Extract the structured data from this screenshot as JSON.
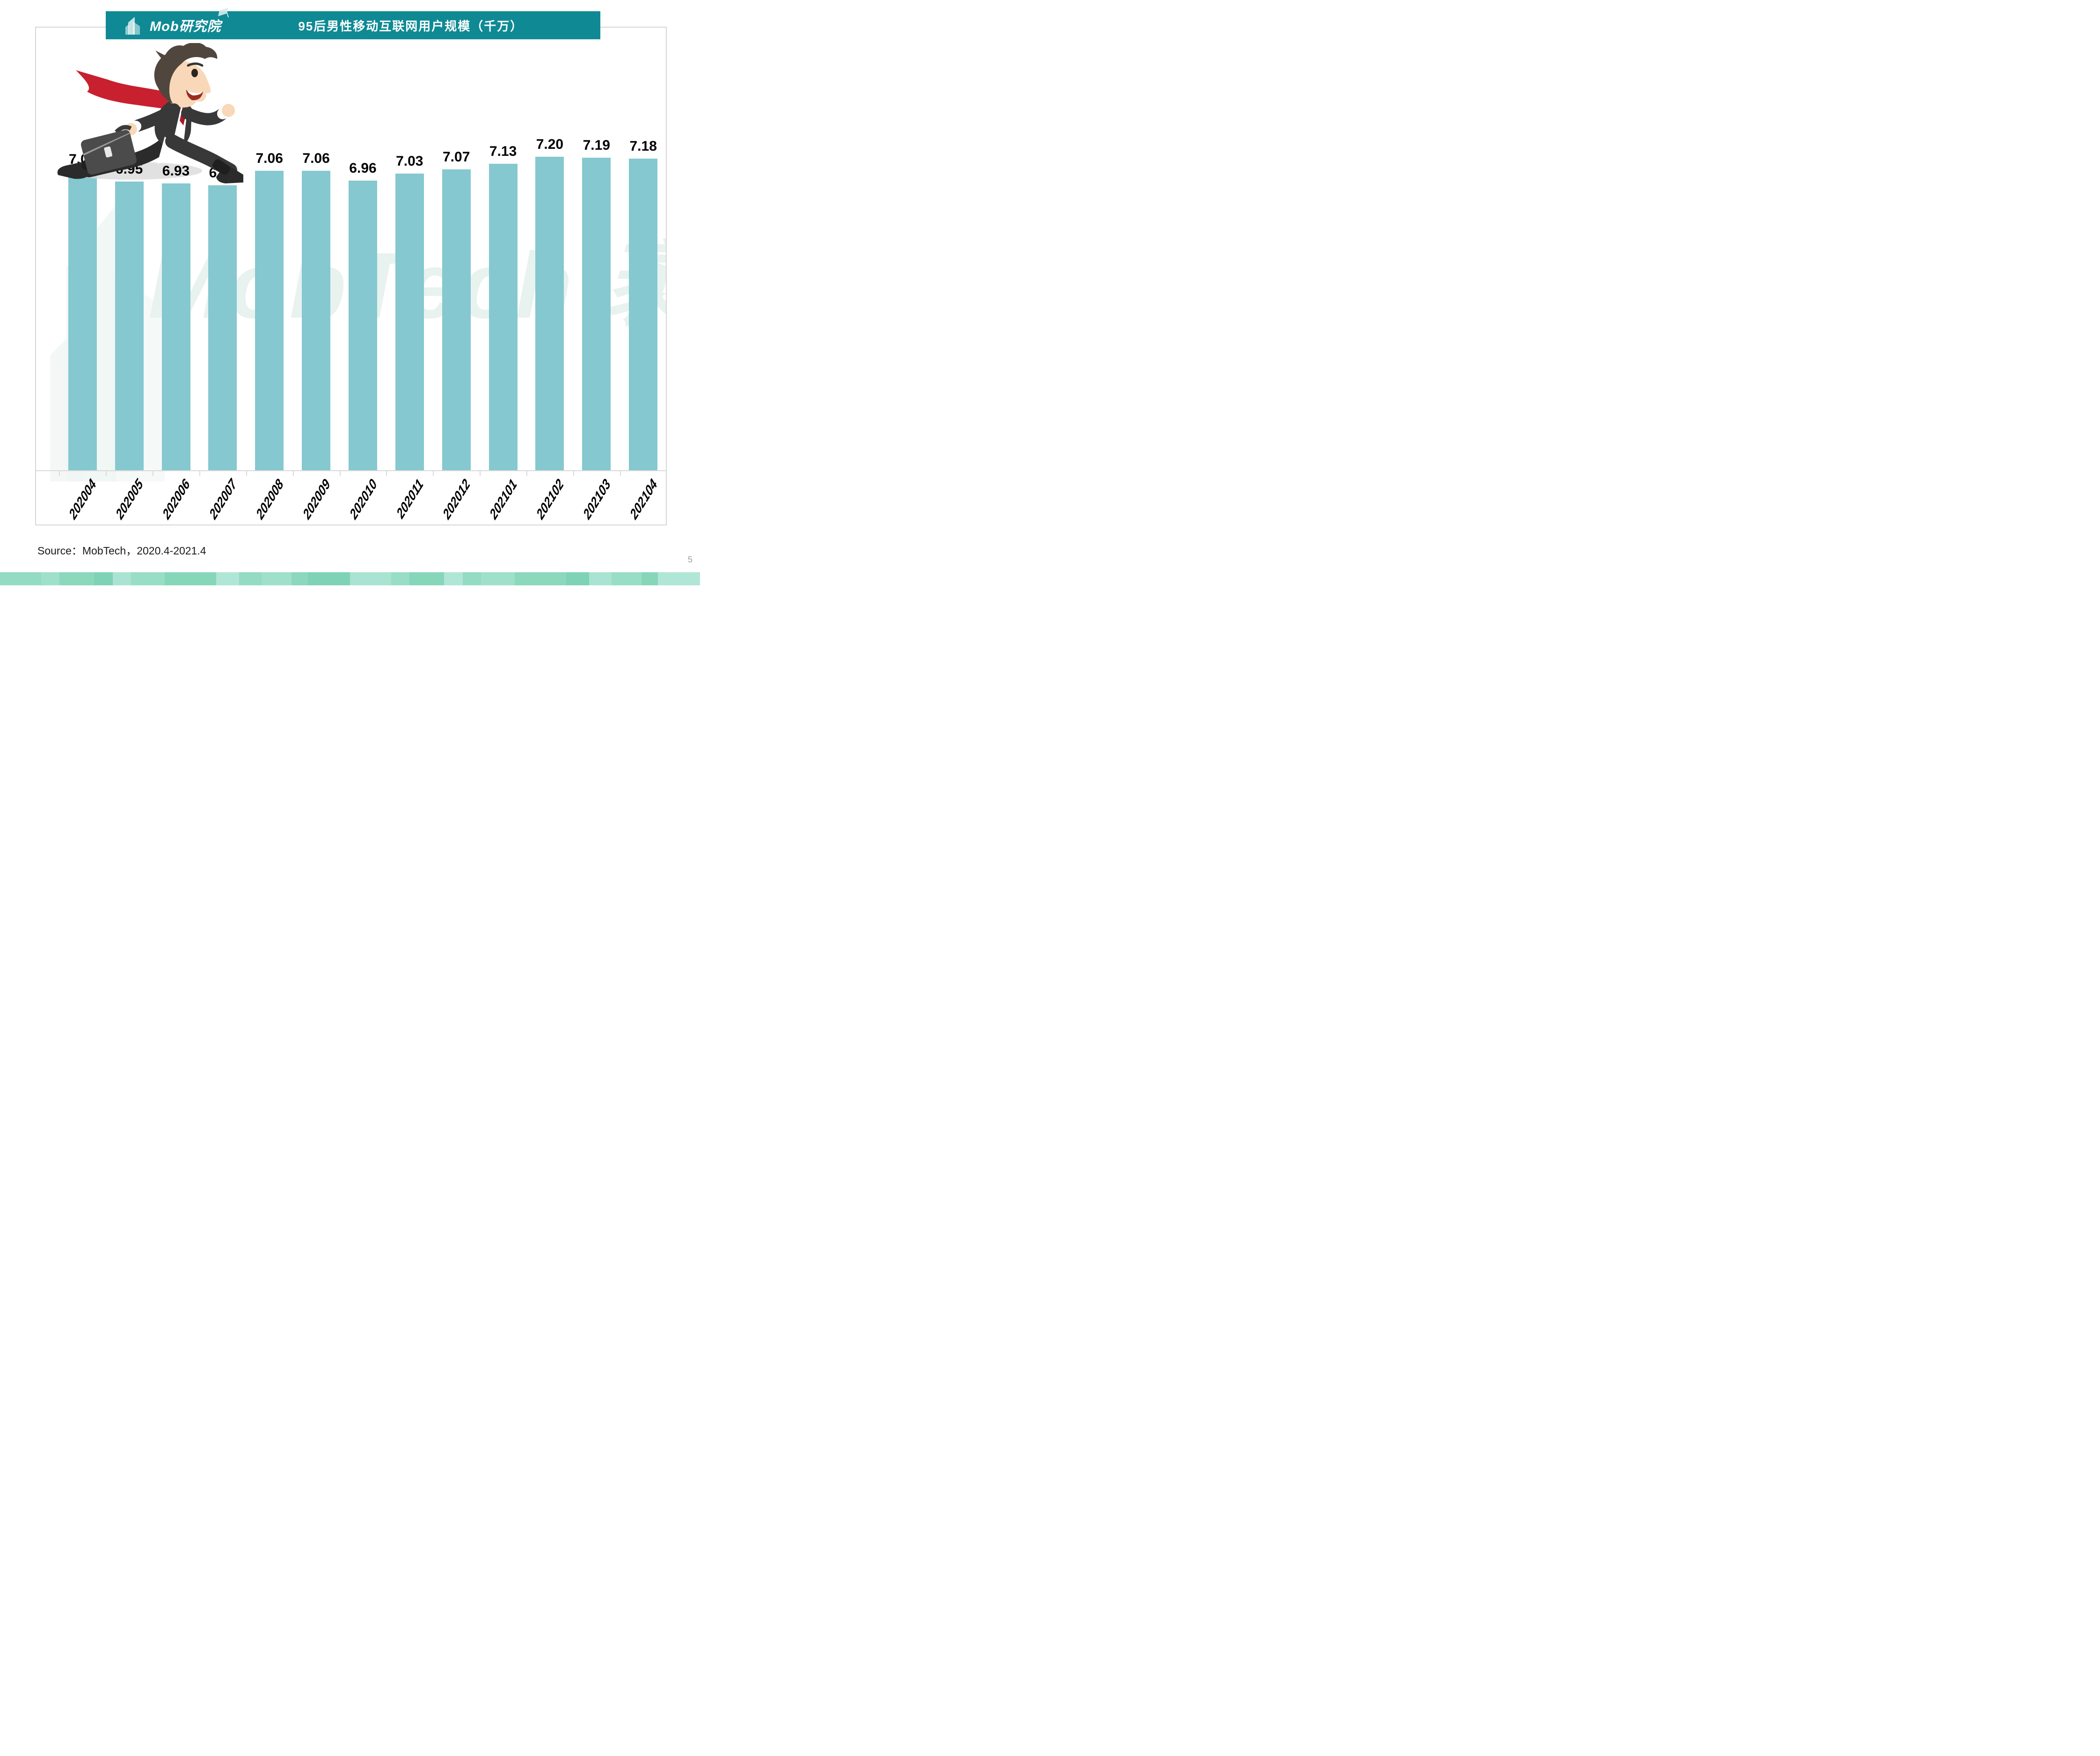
{
  "page": {
    "number": "5",
    "background": "#FFFFFF"
  },
  "banner": {
    "brand": "Mob研究院",
    "brand_icon": "buildings-logo-with-graduation-cap",
    "title": "95后男性移动互联网用户规模（千万）",
    "bg_color": "#0F8A94",
    "text_color": "#FFFFFF"
  },
  "chart_data": {
    "type": "bar",
    "title": "95后男性移动互联网用户规模（千万）",
    "unit": "千万",
    "categories": [
      "202004",
      "202005",
      "202006",
      "202007",
      "202008",
      "202009",
      "202010",
      "202011",
      "202012",
      "202101",
      "202102",
      "202103",
      "202104"
    ],
    "values": [
      7.05,
      6.95,
      6.93,
      6.91,
      7.06,
      7.06,
      6.96,
      7.03,
      7.07,
      7.13,
      7.2,
      7.19,
      7.18
    ],
    "value_labels": [
      "7.05",
      "6.95",
      "6.93",
      "6.91",
      "7.06",
      "7.06",
      "6.96",
      "7.03",
      "7.07",
      "7.13",
      "7.20",
      "7.19",
      "7.18"
    ],
    "bar_color": "#85C8CF",
    "value_label_color": "#000000",
    "x_label_color": "#000000",
    "axis_color": "#D9D9D9",
    "ylim": [
      4.0,
      7.4
    ],
    "grid": false,
    "legend_position": null,
    "x_label_angle_deg": -58
  },
  "watermark": {
    "text": "MobTech 袤博",
    "text_color": "#E8F2EF",
    "building_color": "#EFF6F3"
  },
  "illustration": {
    "name": "running-businessman-with-briefcase",
    "suit_color": "#383838",
    "suit_dark": "#2B2B2B",
    "hair_color": "#51463D",
    "skin_color": "#F8D8B8",
    "cape_color": "#C8202F",
    "cape_dark": "#A8182A",
    "shirt_color": "#FFFFFF",
    "briefcase_color": "#4B4B4B",
    "briefcase_light": "#6E6E6E",
    "shadow_color": "#DADADA"
  },
  "source_note": "Source：MobTech，2020.4-2021.4",
  "footer_band": {
    "colors": [
      "#93DBC2",
      "#9FE0CB",
      "#8BD8BD",
      "#7ED3B6",
      "#A9E3D1",
      "#98DEC6",
      "#86D6B9",
      "#B0E6D6"
    ],
    "widths": [
      88,
      40,
      74,
      40,
      40,
      72,
      110,
      50,
      48,
      64,
      36,
      90
    ]
  }
}
